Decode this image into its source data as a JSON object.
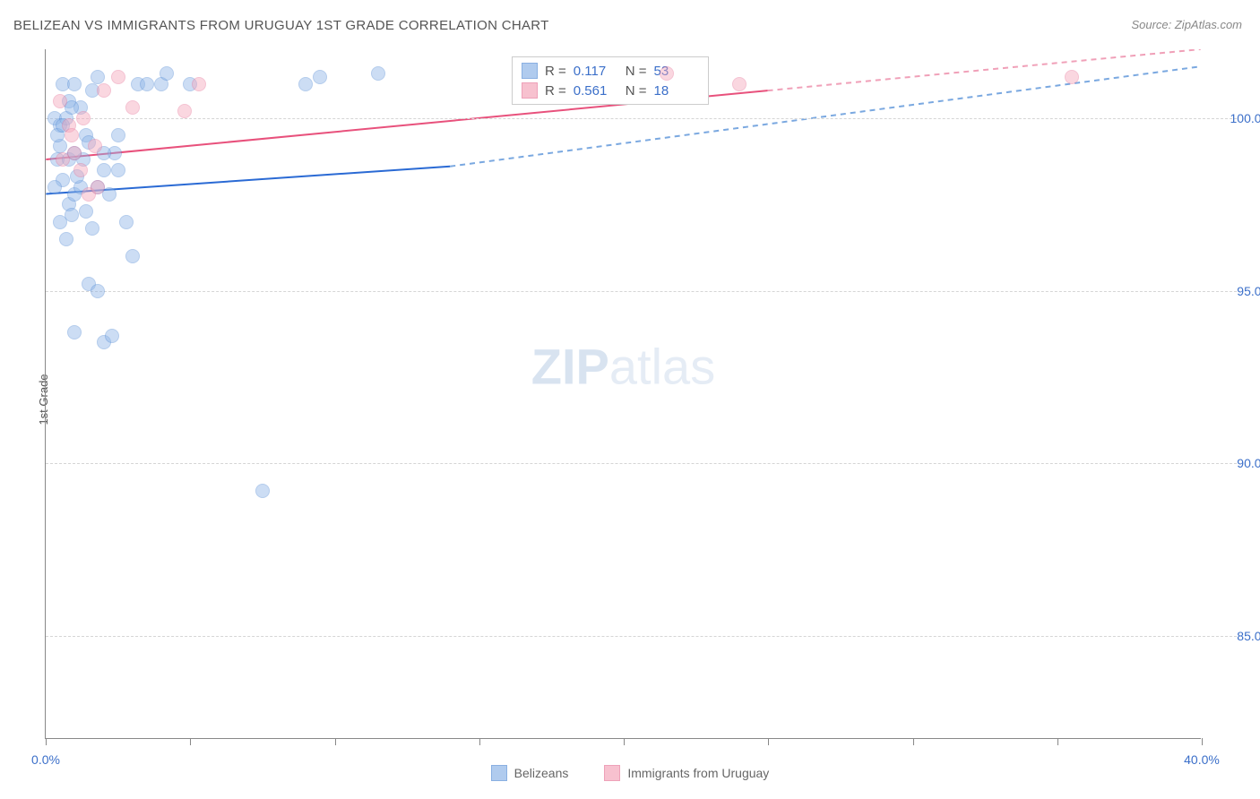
{
  "title": "BELIZEAN VS IMMIGRANTS FROM URUGUAY 1ST GRADE CORRELATION CHART",
  "source": "Source: ZipAtlas.com",
  "y_axis_label": "1st Grade",
  "watermark": {
    "bold": "ZIP",
    "light": "atlas"
  },
  "chart": {
    "type": "scatter",
    "xlim": [
      0,
      40
    ],
    "ylim": [
      82,
      102
    ],
    "x_ticks": [
      0,
      5,
      10,
      15,
      20,
      25,
      30,
      35,
      40
    ],
    "x_tick_labels": {
      "0": "0.0%",
      "40": "40.0%"
    },
    "y_ticks": [
      85,
      90,
      95,
      100
    ],
    "y_tick_labels": {
      "85": "85.0%",
      "90": "90.0%",
      "95": "95.0%",
      "100": "100.0%"
    },
    "grid_color": "#d5d5d5",
    "background_color": "#ffffff",
    "series": [
      {
        "name": "Belizeans",
        "fill_color": "#8fb6e8",
        "fill_opacity": 0.45,
        "stroke_color": "#5a8fd6",
        "trend_color": "#2a6ad4",
        "trend_dash_color": "#7aa8e0",
        "r_label": "R =",
        "r_value": "0.117",
        "n_label": "N =",
        "n_value": "53",
        "trend": {
          "x0": 0,
          "y0": 97.8,
          "x1_solid": 14,
          "y1_solid": 98.6,
          "x2_dash": 40,
          "y2_dash": 101.5
        },
        "points": [
          [
            0.3,
            100.0
          ],
          [
            0.5,
            99.8
          ],
          [
            0.6,
            101.0
          ],
          [
            0.8,
            100.5
          ],
          [
            1.0,
            101.0
          ],
          [
            1.2,
            100.3
          ],
          [
            1.4,
            99.5
          ],
          [
            1.6,
            100.8
          ],
          [
            1.8,
            101.2
          ],
          [
            2.0,
            98.5
          ],
          [
            2.2,
            97.8
          ],
          [
            2.4,
            99.0
          ],
          [
            0.4,
            98.8
          ],
          [
            0.6,
            98.2
          ],
          [
            0.8,
            97.5
          ],
          [
            1.0,
            97.8
          ],
          [
            1.2,
            98.0
          ],
          [
            1.4,
            97.3
          ],
          [
            1.6,
            96.8
          ],
          [
            0.5,
            97.0
          ],
          [
            0.7,
            96.5
          ],
          [
            0.9,
            97.2
          ],
          [
            1.1,
            98.3
          ],
          [
            1.3,
            98.8
          ],
          [
            0.3,
            98.0
          ],
          [
            0.5,
            99.2
          ],
          [
            0.7,
            100.0
          ],
          [
            0.9,
            100.3
          ],
          [
            1.5,
            95.2
          ],
          [
            1.8,
            95.0
          ],
          [
            2.5,
            98.5
          ],
          [
            2.8,
            97.0
          ],
          [
            3.0,
            96.0
          ],
          [
            3.2,
            101.0
          ],
          [
            4.0,
            101.0
          ],
          [
            4.2,
            101.3
          ],
          [
            5.0,
            101.0
          ],
          [
            9.0,
            101.0
          ],
          [
            9.5,
            101.2
          ],
          [
            11.5,
            101.3
          ],
          [
            1.0,
            93.8
          ],
          [
            2.0,
            93.5
          ],
          [
            2.3,
            93.7
          ],
          [
            7.5,
            89.2
          ],
          [
            0.4,
            99.5
          ],
          [
            0.6,
            99.8
          ],
          [
            0.8,
            98.8
          ],
          [
            1.0,
            99.0
          ],
          [
            1.5,
            99.3
          ],
          [
            1.8,
            98.0
          ],
          [
            2.0,
            99.0
          ],
          [
            2.5,
            99.5
          ],
          [
            3.5,
            101.0
          ]
        ]
      },
      {
        "name": "Immigrants from Uruguay",
        "fill_color": "#f4a8bc",
        "fill_opacity": 0.45,
        "stroke_color": "#e87a9c",
        "trend_color": "#e8517c",
        "trend_dash_color": "#f0a0b8",
        "r_label": "R =",
        "r_value": "0.561",
        "n_label": "N =",
        "n_value": "18",
        "trend": {
          "x0": 0,
          "y0": 98.8,
          "x1_solid": 25,
          "y1_solid": 100.8,
          "x2_dash": 40,
          "y2_dash": 102.0
        },
        "points": [
          [
            0.5,
            100.5
          ],
          [
            0.8,
            99.8
          ],
          [
            1.0,
            99.0
          ],
          [
            1.2,
            98.5
          ],
          [
            1.5,
            97.8
          ],
          [
            1.8,
            98.0
          ],
          [
            2.0,
            100.8
          ],
          [
            2.5,
            101.2
          ],
          [
            0.6,
            98.8
          ],
          [
            0.9,
            99.5
          ],
          [
            1.3,
            100.0
          ],
          [
            1.7,
            99.2
          ],
          [
            3.0,
            100.3
          ],
          [
            5.3,
            101.0
          ],
          [
            4.8,
            100.2
          ],
          [
            21.5,
            101.3
          ],
          [
            24.0,
            101.0
          ],
          [
            35.5,
            101.2
          ]
        ]
      }
    ]
  },
  "legend": {
    "items": [
      {
        "label": "Belizeans",
        "fill": "#8fb6e8",
        "stroke": "#5a8fd6"
      },
      {
        "label": "Immigrants from Uruguay",
        "fill": "#f4a8bc",
        "stroke": "#e87a9c"
      }
    ]
  }
}
